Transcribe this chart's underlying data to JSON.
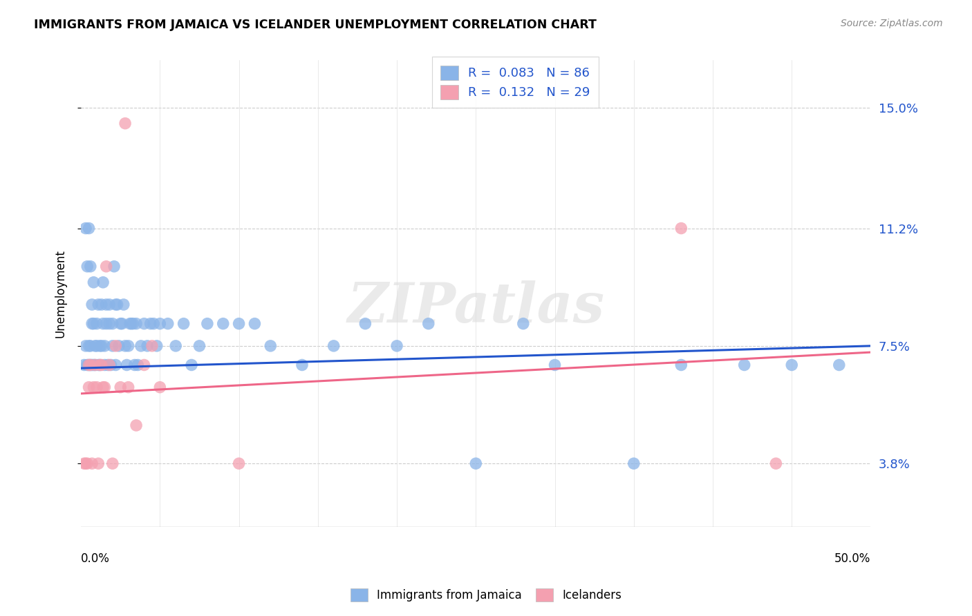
{
  "title": "IMMIGRANTS FROM JAMAICA VS ICELANDER UNEMPLOYMENT CORRELATION CHART",
  "source": "Source: ZipAtlas.com",
  "ylabel": "Unemployment",
  "yticks": [
    0.038,
    0.075,
    0.112,
    0.15
  ],
  "ytick_labels": [
    "3.8%",
    "7.5%",
    "11.2%",
    "15.0%"
  ],
  "xlim": [
    0.0,
    0.5
  ],
  "ylim": [
    0.018,
    0.165
  ],
  "legend1_label": "R =  0.083   N = 86",
  "legend2_label": "R =  0.132   N = 29",
  "legend_series1": "Immigrants from Jamaica",
  "legend_series2": "Icelanders",
  "color_blue": "#8AB4E8",
  "color_pink": "#F4A0B0",
  "color_line_blue": "#2255CC",
  "color_line_pink": "#EE6688",
  "watermark": "ZIPatlas",
  "blue_x": [
    0.002,
    0.003,
    0.004,
    0.005,
    0.005,
    0.006,
    0.006,
    0.007,
    0.007,
    0.008,
    0.008,
    0.009,
    0.009,
    0.01,
    0.01,
    0.011,
    0.011,
    0.012,
    0.012,
    0.013,
    0.013,
    0.014,
    0.014,
    0.015,
    0.015,
    0.016,
    0.016,
    0.017,
    0.018,
    0.018,
    0.019,
    0.02,
    0.02,
    0.021,
    0.022,
    0.022,
    0.023,
    0.024,
    0.025,
    0.026,
    0.027,
    0.028,
    0.029,
    0.03,
    0.031,
    0.032,
    0.033,
    0.034,
    0.035,
    0.036,
    0.038,
    0.04,
    0.042,
    0.044,
    0.046,
    0.048,
    0.05,
    0.055,
    0.06,
    0.065,
    0.07,
    0.075,
    0.08,
    0.09,
    0.1,
    0.11,
    0.12,
    0.14,
    0.16,
    0.18,
    0.2,
    0.22,
    0.25,
    0.28,
    0.3,
    0.35,
    0.38,
    0.42,
    0.45,
    0.48,
    0.003,
    0.004,
    0.005,
    0.006,
    0.007,
    0.008
  ],
  "blue_y": [
    0.069,
    0.075,
    0.069,
    0.069,
    0.075,
    0.069,
    0.075,
    0.069,
    0.082,
    0.069,
    0.082,
    0.075,
    0.069,
    0.075,
    0.082,
    0.069,
    0.088,
    0.075,
    0.069,
    0.075,
    0.088,
    0.095,
    0.082,
    0.075,
    0.069,
    0.082,
    0.088,
    0.069,
    0.082,
    0.088,
    0.069,
    0.082,
    0.075,
    0.1,
    0.088,
    0.069,
    0.088,
    0.075,
    0.082,
    0.082,
    0.088,
    0.075,
    0.069,
    0.075,
    0.082,
    0.082,
    0.082,
    0.069,
    0.082,
    0.069,
    0.075,
    0.082,
    0.075,
    0.082,
    0.082,
    0.075,
    0.082,
    0.082,
    0.075,
    0.082,
    0.069,
    0.075,
    0.082,
    0.082,
    0.082,
    0.082,
    0.075,
    0.069,
    0.075,
    0.082,
    0.075,
    0.082,
    0.038,
    0.082,
    0.069,
    0.038,
    0.069,
    0.069,
    0.069,
    0.069,
    0.112,
    0.1,
    0.112,
    0.1,
    0.088,
    0.095
  ],
  "pink_x": [
    0.002,
    0.003,
    0.004,
    0.005,
    0.005,
    0.006,
    0.007,
    0.008,
    0.009,
    0.01,
    0.011,
    0.012,
    0.013,
    0.014,
    0.015,
    0.016,
    0.018,
    0.02,
    0.022,
    0.025,
    0.028,
    0.03,
    0.035,
    0.04,
    0.045,
    0.05,
    0.1,
    0.38,
    0.44
  ],
  "pink_y": [
    0.038,
    0.038,
    0.038,
    0.062,
    0.069,
    0.069,
    0.038,
    0.062,
    0.069,
    0.062,
    0.038,
    0.069,
    0.069,
    0.062,
    0.062,
    0.1,
    0.069,
    0.038,
    0.075,
    0.062,
    0.145,
    0.062,
    0.05,
    0.069,
    0.075,
    0.062,
    0.038,
    0.112,
    0.038
  ],
  "trendline_blue_x0": 0.0,
  "trendline_blue_y0": 0.068,
  "trendline_blue_x1": 0.5,
  "trendline_blue_y1": 0.075,
  "trendline_pink_x0": 0.0,
  "trendline_pink_y0": 0.06,
  "trendline_pink_x1": 0.5,
  "trendline_pink_y1": 0.073
}
